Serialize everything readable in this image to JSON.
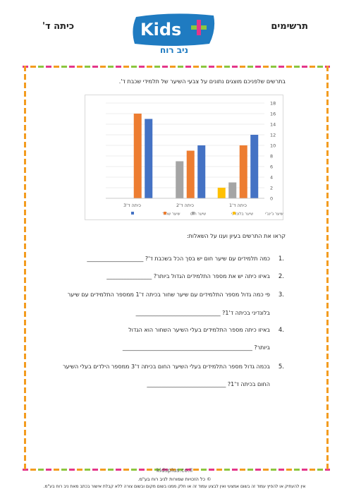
{
  "header": {
    "title": "תרשימים",
    "grade": "כיתה ד'",
    "logo": "Kids",
    "logo_sub": "ניב רוח"
  },
  "intro": "בתרשים שלפניכם מוצגים נתונים על צבעי השיער של תלמידי שכבת ד'.",
  "chart_data": {
    "type": "bar",
    "categories": [
      "כיתה ד'3",
      "כיתה ד'2",
      "כיתה ד'1"
    ],
    "series": [
      {
        "name": "שיער שחור",
        "color": "#4472c4",
        "values": [
          15,
          10,
          12
        ]
      },
      {
        "name": "שיער חום",
        "color": "#ed7d31",
        "values": [
          16,
          9,
          10
        ]
      },
      {
        "name": "שיער בלונדיני",
        "color": "#a5a5a5",
        "values": [
          null,
          7,
          3
        ]
      },
      {
        "name": "שיער ג'ינג'י",
        "color": "#ffc000",
        "values": [
          null,
          null,
          2
        ]
      }
    ],
    "ylim": [
      0,
      18
    ],
    "yticks": [
      0,
      2,
      4,
      6,
      8,
      10,
      12,
      14,
      16,
      18
    ],
    "grid": true,
    "legend": "bottom"
  },
  "instructions": "קראו את התרשים בעיון וענו על השאלות:",
  "questions": [
    {
      "number": "1.",
      "lines": [
        "כמה תלמידים עם שיער חום יש בסך הכל בשכבת ד'? ____________________"
      ]
    },
    {
      "number": "2.",
      "lines": [
        "באיזו כיתה יש את מספר התלמידים הגדול ביותר? ________________"
      ]
    },
    {
      "number": "3.",
      "lines": [
        "פי כמה גדול מספר התלמידים עם שיער שחור בכיתה ד'1 ממספר התלמידים עם שיער",
        "בלונדיני בכיתה ד'1? ______________________________"
      ]
    },
    {
      "number": "4.",
      "lines": [
        "באיזו כיתה מספר התלמידים בעלי השיער השחור הוא הגדול",
        "ביותר? ______________________________________________"
      ]
    },
    {
      "number": "5.",
      "lines": [
        "בכמה גדול מספר התלמידים בעלי השיער החום בכיתה ד'3 ממספר הילדים בעלי השיער",
        "החום בכיתה ד'1? ____________________________"
      ]
    }
  ],
  "footer": {
    "site": "kidsplus.co.il",
    "copyright": "© כל הזכויות שמורות לניב רוח בע\"מ.",
    "notice": "אין להעתיק או להפיץ עמוד זה בשום אמצעי ואין לבצע עמוד זה או חלק ממנו בשום מקום ובשום צורה ללא קבלת אישור בכתב מאת ניב רוח בע\"מ."
  }
}
